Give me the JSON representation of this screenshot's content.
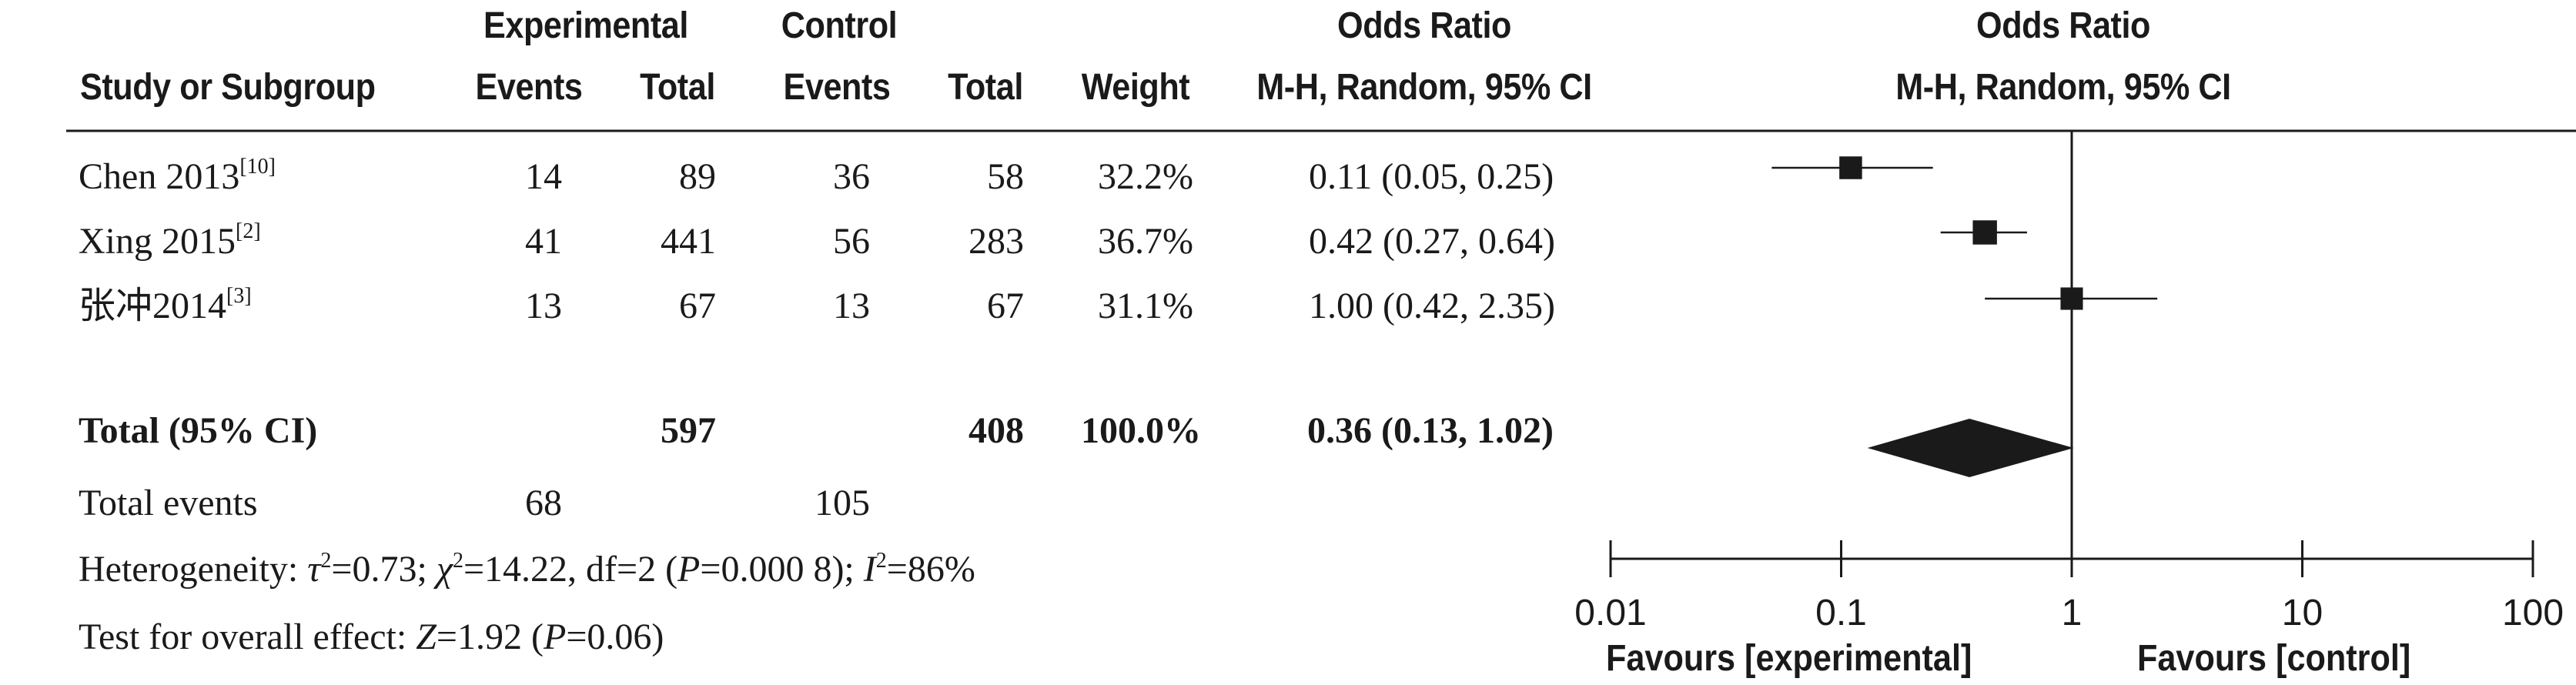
{
  "header": {
    "group_experimental": "Experimental",
    "group_control": "Control",
    "col_study": "Study or Subgroup",
    "col_exp_events": "Events",
    "col_exp_total": "Total",
    "col_ctl_events": "Events",
    "col_ctl_total": "Total",
    "col_weight": "Weight",
    "col_or_title": "Odds Ratio",
    "col_or_method": "M-H, Random, 95% CI",
    "plot_title": "Odds Ratio",
    "plot_method": "M-H, Random, 95% CI"
  },
  "studies": [
    {
      "name": "Chen 2013",
      "ref": "[10]",
      "exp_events": "14",
      "exp_total": "89",
      "ctl_events": "36",
      "ctl_total": "58",
      "weight": "32.2%",
      "ci_text": "0.11 (0.05, 0.25)"
    },
    {
      "name": "Xing 2015",
      "ref": "[2]",
      "exp_events": "41",
      "exp_total": "441",
      "ctl_events": "56",
      "ctl_total": "283",
      "weight": "36.7%",
      "ci_text": "0.42 (0.27, 0.64)"
    },
    {
      "name": "张冲2014",
      "ref": "[3]",
      "exp_events": "13",
      "exp_total": "67",
      "ctl_events": "13",
      "ctl_total": "67",
      "weight": "31.1%",
      "ci_text": "1.00 (0.42, 2.35)"
    }
  ],
  "total": {
    "label": "Total (95% CI)",
    "exp_total": "597",
    "ctl_total": "408",
    "weight": "100.0%",
    "ci_text": "0.36 (0.13, 1.02)"
  },
  "total_events": {
    "label": "Total events",
    "exp": "68",
    "ctl": "105"
  },
  "heterogeneity": {
    "prefix": "Heterogeneity: ",
    "tau_sym": "τ",
    "tau_val": "=0.73; ",
    "chi_sym": "χ",
    "chi_val": "=14.22, df=2 (",
    "p_sym": "P",
    "p_val": "=0.000 8); ",
    "i_sym": "I",
    "i_val": "=86%",
    "sup2": "2"
  },
  "overall": {
    "prefix": "Test for overall effect: ",
    "z_sym": "Z",
    "z_val": "=1.92 (",
    "p_sym": "P",
    "p_val": "=0.06)"
  },
  "axis": {
    "ticks": [
      "0.01",
      "0.1",
      "1",
      "10",
      "100"
    ],
    "favours_left": "Favours [experimental]",
    "favours_right": "Favours [control]"
  },
  "chart_data": {
    "type": "forest",
    "scale": "log",
    "xlim": [
      0.01,
      100
    ],
    "null_line": 1,
    "points": [
      {
        "label": "Chen 2013",
        "or": 0.11,
        "lo": 0.05,
        "hi": 0.25,
        "weight": 32.2
      },
      {
        "label": "Xing 2015",
        "or": 0.42,
        "lo": 0.27,
        "hi": 0.64,
        "weight": 36.7
      },
      {
        "label": "张冲2014",
        "or": 1.0,
        "lo": 0.42,
        "hi": 2.35,
        "weight": 31.1
      }
    ],
    "pooled": {
      "or": 0.36,
      "lo": 0.13,
      "hi": 1.02
    },
    "colors": {
      "ink": "#1a1a1a"
    }
  }
}
